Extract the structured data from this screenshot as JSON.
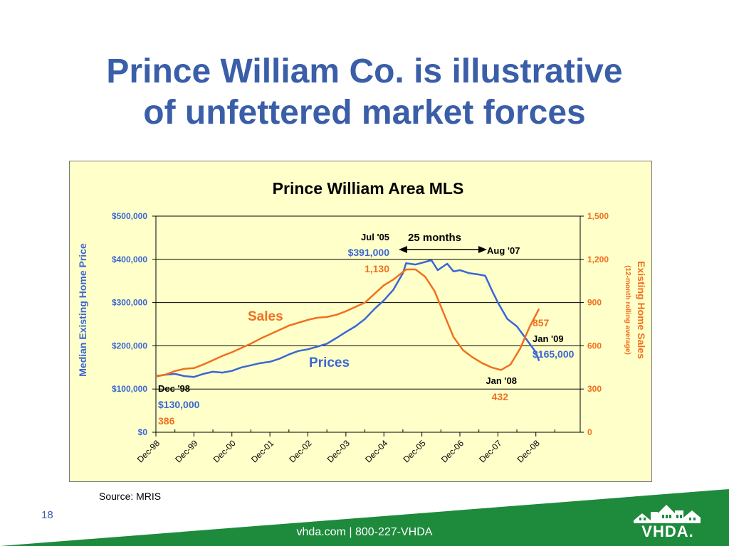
{
  "slide": {
    "title_line1": "Prince William Co. is illustrative",
    "title_line2": "of unfettered market forces",
    "source": "Source:  MRIS",
    "page_number": "18",
    "footer": "vhda.com | 800-227-VHDA",
    "logo_text": "VHDA."
  },
  "colors": {
    "title": "#3a5ea8",
    "prices": "#3a66d6",
    "sales": "#f07020",
    "chart_bg": "#ffffc9",
    "footer_green": "#1e8a3c"
  },
  "chart_data": {
    "type": "line",
    "title": "Prince William Area MLS",
    "ylabel_left": "Median Existing Home Price",
    "ylabel_right": "Existing Home Sales",
    "ylabel_right_sub": "(12-month rolling average)",
    "left_ylim": [
      0,
      500000
    ],
    "right_ylim": [
      0,
      1500
    ],
    "left_ticks": [
      "$0",
      "$100,000",
      "$200,000",
      "$300,000",
      "$400,000",
      "$500,000"
    ],
    "right_ticks": [
      "0",
      "300",
      "600",
      "900",
      "1,200",
      "1,500"
    ],
    "x_ticks": [
      "Dec-98",
      "Dec-99",
      "Dec-00",
      "Dec-01",
      "Dec-02",
      "Dec-03",
      "Dec-04",
      "Dec-05",
      "Dec-06",
      "Dec-07",
      "Dec-08"
    ],
    "x_range": [
      "1998-12",
      "2010-02"
    ],
    "series": [
      {
        "name": "Prices",
        "axis": "left",
        "points": [
          [
            "1998-12",
            130000
          ],
          [
            "1999-03",
            133000
          ],
          [
            "1999-06",
            135000
          ],
          [
            "1999-09",
            130000
          ],
          [
            "1999-12",
            128000
          ],
          [
            "2000-03",
            135000
          ],
          [
            "2000-06",
            140000
          ],
          [
            "2000-09",
            138000
          ],
          [
            "2000-12",
            142000
          ],
          [
            "2001-03",
            150000
          ],
          [
            "2001-06",
            155000
          ],
          [
            "2001-09",
            160000
          ],
          [
            "2001-12",
            163000
          ],
          [
            "2002-03",
            170000
          ],
          [
            "2002-06",
            180000
          ],
          [
            "2002-09",
            188000
          ],
          [
            "2002-12",
            192000
          ],
          [
            "2003-03",
            198000
          ],
          [
            "2003-06",
            205000
          ],
          [
            "2003-09",
            218000
          ],
          [
            "2003-12",
            232000
          ],
          [
            "2004-03",
            245000
          ],
          [
            "2004-06",
            262000
          ],
          [
            "2004-09",
            285000
          ],
          [
            "2004-12",
            305000
          ],
          [
            "2005-03",
            330000
          ],
          [
            "2005-06",
            368000
          ],
          [
            "2005-07",
            391000
          ],
          [
            "2005-10",
            388000
          ],
          [
            "2005-12",
            392000
          ],
          [
            "2006-03",
            398000
          ],
          [
            "2006-05",
            375000
          ],
          [
            "2006-08",
            390000
          ],
          [
            "2006-10",
            372000
          ],
          [
            "2006-12",
            375000
          ],
          [
            "2007-03",
            368000
          ],
          [
            "2007-06",
            365000
          ],
          [
            "2007-08",
            362000
          ],
          [
            "2007-10",
            330000
          ],
          [
            "2007-12",
            300000
          ],
          [
            "2008-03",
            262000
          ],
          [
            "2008-06",
            245000
          ],
          [
            "2008-09",
            215000
          ],
          [
            "2008-12",
            185000
          ],
          [
            "2009-01",
            165000
          ]
        ]
      },
      {
        "name": "Sales",
        "axis": "right",
        "points": [
          [
            "1998-12",
            386
          ],
          [
            "1999-03",
            400
          ],
          [
            "1999-06",
            425
          ],
          [
            "1999-09",
            440
          ],
          [
            "1999-12",
            445
          ],
          [
            "2000-03",
            470
          ],
          [
            "2000-06",
            500
          ],
          [
            "2000-09",
            530
          ],
          [
            "2000-12",
            555
          ],
          [
            "2001-03",
            585
          ],
          [
            "2001-06",
            615
          ],
          [
            "2001-09",
            650
          ],
          [
            "2001-12",
            680
          ],
          [
            "2002-03",
            710
          ],
          [
            "2002-06",
            740
          ],
          [
            "2002-09",
            760
          ],
          [
            "2002-12",
            780
          ],
          [
            "2003-03",
            795
          ],
          [
            "2003-06",
            800
          ],
          [
            "2003-09",
            815
          ],
          [
            "2003-12",
            840
          ],
          [
            "2004-03",
            870
          ],
          [
            "2004-06",
            900
          ],
          [
            "2004-09",
            960
          ],
          [
            "2004-12",
            1020
          ],
          [
            "2005-03",
            1060
          ],
          [
            "2005-07",
            1130
          ],
          [
            "2005-10",
            1130
          ],
          [
            "2006-01",
            1080
          ],
          [
            "2006-04",
            980
          ],
          [
            "2006-07",
            820
          ],
          [
            "2006-10",
            660
          ],
          [
            "2007-01",
            570
          ],
          [
            "2007-04",
            520
          ],
          [
            "2007-07",
            480
          ],
          [
            "2007-10",
            450
          ],
          [
            "2008-01",
            432
          ],
          [
            "2008-04",
            470
          ],
          [
            "2008-07",
            580
          ],
          [
            "2008-10",
            730
          ],
          [
            "2009-01",
            857
          ]
        ]
      }
    ],
    "annotations": {
      "dec98_date": "Dec '98",
      "dec98_price": "$130,000",
      "dec98_sales": "386",
      "jul05_date": "Jul '05",
      "jul05_price": "$391,000",
      "jul05_sales": "1,130",
      "span_label": "25 months",
      "aug07_date": "Aug '07",
      "jan08_date": "Jan '08",
      "jan08_sales": "432",
      "jan09_sales": "857",
      "jan09_date": "Jan '09",
      "jan09_price": "$165,000",
      "sales_label": "Sales",
      "prices_label": "Prices"
    }
  }
}
